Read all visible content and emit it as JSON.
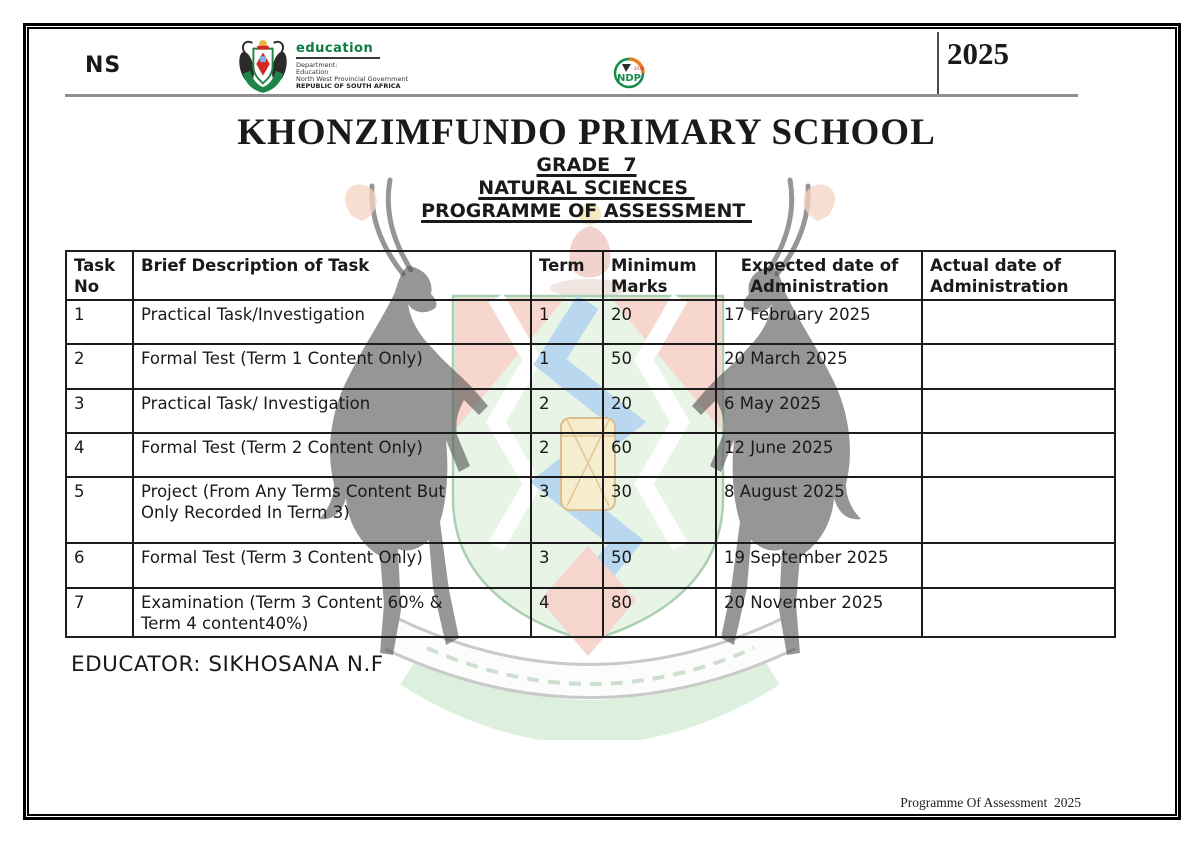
{
  "header": {
    "ns_label": "NS",
    "year": "2025",
    "education_logo": {
      "name": "education",
      "lines": [
        "Department:",
        "Education",
        "North West Provincial Government",
        "REPUBLIC OF SOUTH AFRICA"
      ]
    },
    "ndp_logo": {
      "label": "NDP",
      "year": "2030"
    }
  },
  "title_block": {
    "school": "KHONZIMFUNDO PRIMARY SCHOOL",
    "grade": "GRADE  7",
    "subject": "NATURAL SCIENCES ",
    "doc_title": "PROGRAMME OF ASSESSMENT "
  },
  "table": {
    "headers": [
      "Task\nNo",
      "Brief Description of Task",
      "Term",
      "Minimum\nMarks",
      "Expected date of\nAdministration",
      "Actual date of\nAdministration"
    ],
    "rows": [
      {
        "no": "1",
        "desc": "Practical Task/Investigation",
        "term": "1",
        "marks": "20",
        "expected": "17 February 2025",
        "actual": ""
      },
      {
        "no": "2",
        "desc": "Formal Test (Term 1 Content Only)",
        "term": "1",
        "marks": "50",
        "expected": "20 March 2025",
        "actual": ""
      },
      {
        "no": "3",
        "desc": "Practical Task/ Investigation",
        "term": "2",
        "marks": "20",
        "expected": "6 May 2025",
        "actual": ""
      },
      {
        "no": "4",
        "desc": "Formal Test (Term 2 Content Only)",
        "term": "2",
        "marks": "60",
        "expected": "12 June 2025",
        "actual": ""
      },
      {
        "no": "5",
        "desc": "Project (From Any Terms Content But\nOnly Recorded In Term 3)",
        "term": "3",
        "marks": "30",
        "expected": "8 August 2025",
        "actual": ""
      },
      {
        "no": "6",
        "desc": "Formal Test (Term 3 Content Only)",
        "term": "3",
        "marks": "50",
        "expected": "19 September 2025",
        "actual": ""
      },
      {
        "no": "7",
        "desc": "Examination (Term 3 Content 60% &\nTerm 4 content40%)",
        "term": "4",
        "marks": "80",
        "expected": "20 November 2025",
        "actual": ""
      }
    ]
  },
  "educator": {
    "label": "EDUCATOR: SIKHOSANA N.F"
  },
  "footer": {
    "text": "Programme Of Assessment  2025"
  },
  "colors": {
    "education_green": "#0b7d44",
    "header_rule_gray": "#8f8f8f",
    "ndp_orange": "#e87c1e",
    "watermark_shield_green": "#e8f4e6",
    "watermark_red": "#f7d6ce",
    "watermark_blue": "#b9d8ef",
    "watermark_yellow": "#f5edcb"
  }
}
